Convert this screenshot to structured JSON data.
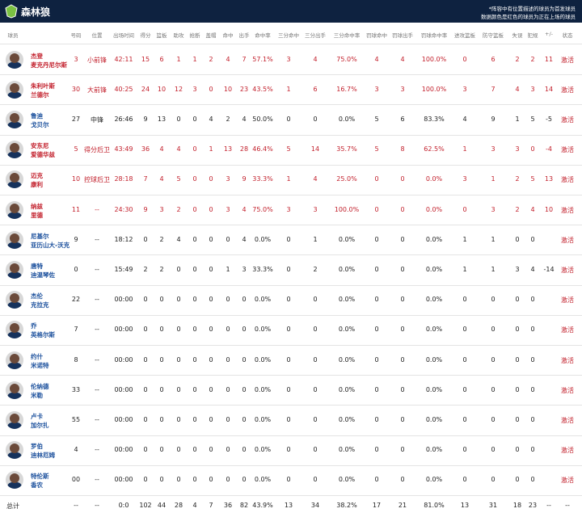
{
  "header": {
    "title": "森林狼",
    "notes": [
      "*阵容中有位置描述的球员为首发球员",
      "数据颜色是红色的球员为正在上场的球员"
    ]
  },
  "table": {
    "columns": [
      "球员",
      "号码",
      "位置",
      "出场时间",
      "得分",
      "篮板",
      "助攻",
      "抢断",
      "盖帽",
      "命中",
      "出手",
      "命中率",
      "三分命中",
      "三分出手",
      "三分命中率",
      "罚球命中",
      "罚球出手",
      "罚球命中率",
      "进攻篮板",
      "防守篮板",
      "失误",
      "犯规",
      "+/-",
      "状态"
    ],
    "rows": [
      {
        "name": [
          "杰登",
          "麦克丹尼尔斯"
        ],
        "on_court": true,
        "cells": [
          3,
          "小前锋",
          "42:11",
          15,
          6,
          1,
          1,
          2,
          4,
          7,
          "57.1%",
          3,
          4,
          "75.0%",
          4,
          4,
          "100.0%",
          0,
          6,
          2,
          2,
          11,
          "激活"
        ]
      },
      {
        "name": [
          "朱利叶斯",
          "兰德尔"
        ],
        "on_court": true,
        "cells": [
          30,
          "大前锋",
          "40:25",
          24,
          10,
          12,
          3,
          0,
          10,
          23,
          "43.5%",
          1,
          6,
          "16.7%",
          3,
          3,
          "100.0%",
          3,
          7,
          4,
          3,
          14,
          "激活"
        ]
      },
      {
        "name": [
          "鲁迪",
          "戈贝尔"
        ],
        "on_court": false,
        "cells": [
          27,
          "中锋",
          "26:46",
          9,
          13,
          0,
          0,
          4,
          2,
          4,
          "50.0%",
          0,
          0,
          "0.0%",
          5,
          6,
          "83.3%",
          4,
          9,
          1,
          5,
          -5,
          "激活"
        ]
      },
      {
        "name": [
          "安东尼",
          "爱德华兹"
        ],
        "on_court": true,
        "cells": [
          5,
          "得分后卫",
          "43:49",
          36,
          4,
          4,
          0,
          1,
          13,
          28,
          "46.4%",
          5,
          14,
          "35.7%",
          5,
          8,
          "62.5%",
          1,
          3,
          3,
          0,
          -4,
          "激活"
        ]
      },
      {
        "name": [
          "迈克",
          "康利"
        ],
        "on_court": true,
        "cells": [
          10,
          "控球后卫",
          "28:18",
          7,
          4,
          5,
          0,
          0,
          3,
          9,
          "33.3%",
          1,
          4,
          "25.0%",
          0,
          0,
          "0.0%",
          3,
          1,
          2,
          5,
          13,
          "激活"
        ]
      },
      {
        "name": [
          "纳兹",
          "里德"
        ],
        "on_court": true,
        "cells": [
          11,
          "--",
          "24:30",
          9,
          3,
          2,
          0,
          0,
          3,
          4,
          "75.0%",
          3,
          3,
          "100.0%",
          0,
          0,
          "0.0%",
          0,
          3,
          2,
          4,
          10,
          "激活"
        ]
      },
      {
        "name": [
          "尼基尔",
          "亚历山大-沃克"
        ],
        "on_court": false,
        "cells": [
          9,
          "--",
          "18:12",
          0,
          2,
          4,
          0,
          0,
          0,
          4,
          "0.0%",
          0,
          1,
          "0.0%",
          0,
          0,
          "0.0%",
          1,
          1,
          0,
          0,
          null,
          "激活"
        ]
      },
      {
        "name": [
          "唐特",
          "迪温琴佐"
        ],
        "on_court": false,
        "cells": [
          0,
          "--",
          "15:49",
          2,
          2,
          0,
          0,
          0,
          1,
          3,
          "33.3%",
          0,
          2,
          "0.0%",
          0,
          0,
          "0.0%",
          1,
          1,
          3,
          4,
          -14,
          "激活"
        ]
      },
      {
        "name": [
          "杰伦",
          "克拉克"
        ],
        "on_court": false,
        "cells": [
          22,
          "--",
          "00:00",
          0,
          0,
          0,
          0,
          0,
          0,
          0,
          "0.0%",
          0,
          0,
          "0.0%",
          0,
          0,
          "0.0%",
          0,
          0,
          0,
          0,
          null,
          "激活"
        ]
      },
      {
        "name": [
          "乔",
          "英格尔斯"
        ],
        "on_court": false,
        "cells": [
          7,
          "--",
          "00:00",
          0,
          0,
          0,
          0,
          0,
          0,
          0,
          "0.0%",
          0,
          0,
          "0.0%",
          0,
          0,
          "0.0%",
          0,
          0,
          0,
          0,
          null,
          "激活"
        ]
      },
      {
        "name": [
          "约什",
          "米诺特"
        ],
        "on_court": false,
        "cells": [
          8,
          "--",
          "00:00",
          0,
          0,
          0,
          0,
          0,
          0,
          0,
          "0.0%",
          0,
          0,
          "0.0%",
          0,
          0,
          "0.0%",
          0,
          0,
          0,
          0,
          null,
          "激活"
        ]
      },
      {
        "name": [
          "伦纳德",
          "米勒"
        ],
        "on_court": false,
        "cells": [
          33,
          "--",
          "00:00",
          0,
          0,
          0,
          0,
          0,
          0,
          0,
          "0.0%",
          0,
          0,
          "0.0%",
          0,
          0,
          "0.0%",
          0,
          0,
          0,
          0,
          null,
          "激活"
        ]
      },
      {
        "name": [
          "卢卡",
          "加尔扎"
        ],
        "on_court": false,
        "cells": [
          55,
          "--",
          "00:00",
          0,
          0,
          0,
          0,
          0,
          0,
          0,
          "0.0%",
          0,
          0,
          "0.0%",
          0,
          0,
          "0.0%",
          0,
          0,
          0,
          0,
          null,
          "激活"
        ]
      },
      {
        "name": [
          "罗伯",
          "迪林厄姆"
        ],
        "on_court": false,
        "cells": [
          4,
          "--",
          "00:00",
          0,
          0,
          0,
          0,
          0,
          0,
          0,
          "0.0%",
          0,
          0,
          "0.0%",
          0,
          0,
          "0.0%",
          0,
          0,
          0,
          0,
          null,
          "激活"
        ]
      },
      {
        "name": [
          "特伦斯",
          "香农"
        ],
        "on_court": false,
        "cells": [
          "00",
          "--",
          "00:00",
          0,
          0,
          0,
          0,
          0,
          0,
          0,
          "0.0%",
          0,
          0,
          "0.0%",
          0,
          0,
          "0.0%",
          0,
          0,
          0,
          0,
          null,
          "激活"
        ]
      }
    ],
    "totals": {
      "label": "总计",
      "cells": [
        "--",
        "--",
        "0:0",
        102,
        44,
        28,
        4,
        7,
        36,
        82,
        "43.9%",
        13,
        34,
        "38.2%",
        17,
        21,
        "81.0%",
        13,
        31,
        18,
        23,
        "--",
        "--"
      ]
    }
  }
}
